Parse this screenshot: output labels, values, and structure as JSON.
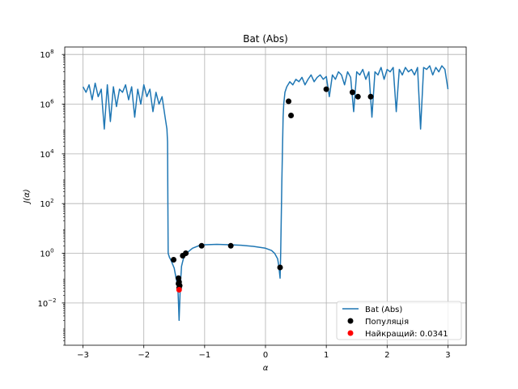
{
  "chart_data": {
    "type": "line",
    "title": "Bat (Abs)",
    "xlabel": "α",
    "ylabel": "J(α)",
    "xlim": [
      -3.3,
      3.3
    ],
    "ylim_log10": [
      -3.7,
      8.3
    ],
    "yscale": "log",
    "grid": true,
    "legend_position": "lower-right",
    "x_ticks": [
      -3,
      -2,
      -1,
      0,
      1,
      2,
      3
    ],
    "x_tick_labels": [
      "−3",
      "−2",
      "−1",
      "0",
      "1",
      "2",
      "3"
    ],
    "y_tick_exponents": [
      -2,
      0,
      2,
      4,
      6,
      8
    ],
    "y_tick_base": "10",
    "series": [
      {
        "name": "Bat (Abs)",
        "kind": "line",
        "color": "#1f77b4",
        "x": [
          -3.0,
          -2.95,
          -2.9,
          -2.85,
          -2.8,
          -2.75,
          -2.7,
          -2.65,
          -2.6,
          -2.55,
          -2.5,
          -2.45,
          -2.4,
          -2.35,
          -2.3,
          -2.25,
          -2.2,
          -2.15,
          -2.1,
          -2.05,
          -2.0,
          -1.95,
          -1.9,
          -1.85,
          -1.8,
          -1.75,
          -1.7,
          -1.65,
          -1.62,
          -1.61,
          -1.6,
          -1.58,
          -1.55,
          -1.5,
          -1.47,
          -1.45,
          -1.44,
          -1.43,
          -1.42,
          -1.41,
          -1.4,
          -1.38,
          -1.35,
          -1.3,
          -1.2,
          -1.1,
          -1.0,
          -0.8,
          -0.6,
          -0.4,
          -0.2,
          0.0,
          0.1,
          0.15,
          0.2,
          0.22,
          0.24,
          0.25,
          0.27,
          0.29,
          0.3,
          0.32,
          0.35,
          0.4,
          0.45,
          0.5,
          0.55,
          0.6,
          0.65,
          0.7,
          0.75,
          0.8,
          0.85,
          0.9,
          0.95,
          1.0,
          1.05,
          1.1,
          1.15,
          1.2,
          1.25,
          1.3,
          1.35,
          1.4,
          1.45,
          1.5,
          1.55,
          1.6,
          1.65,
          1.7,
          1.75,
          1.8,
          1.85,
          1.9,
          1.95,
          2.0,
          2.05,
          2.1,
          2.15,
          2.2,
          2.25,
          2.3,
          2.35,
          2.4,
          2.45,
          2.5,
          2.55,
          2.6,
          2.65,
          2.7,
          2.75,
          2.8,
          2.85,
          2.9,
          2.95,
          3.0
        ],
        "y": [
          5000000.0,
          3000000.0,
          6000000.0,
          1500000.0,
          7000000.0,
          2000000.0,
          4000000.0,
          100000.0,
          6000000.0,
          200000.0,
          5000000.0,
          800000.0,
          4000000.0,
          3000000.0,
          6000000.0,
          1500000.0,
          5000000.0,
          300000.0,
          4000000.0,
          1000000.0,
          6000000.0,
          2000000.0,
          4000000.0,
          500000.0,
          3000000.0,
          1000000.0,
          2000000.0,
          300000.0,
          100000.0,
          30000.0,
          1.0,
          0.7,
          0.5,
          0.25,
          0.1,
          0.06,
          0.04,
          0.01,
          0.002,
          0.01,
          0.05,
          0.3,
          0.6,
          1.0,
          1.6,
          2.0,
          2.2,
          2.3,
          2.2,
          2.1,
          1.9,
          1.6,
          1.3,
          1.0,
          0.6,
          0.3,
          0.1,
          1.0,
          1000.0,
          300000.0,
          1000000.0,
          3000000.0,
          5000000.0,
          8000000.0,
          6000000.0,
          10000000.0,
          8000000.0,
          12000000.0,
          6000000.0,
          10000000.0,
          15000000.0,
          8000000.0,
          12000000.0,
          15000000.0,
          10000000.0,
          13000000.0,
          2000000.0,
          15000000.0,
          10000000.0,
          20000000.0,
          15000000.0,
          6000000.0,
          20000000.0,
          12000000.0,
          500000.0,
          20000000.0,
          15000000.0,
          25000000.0,
          10000000.0,
          20000000.0,
          300000.0,
          20000000.0,
          15000000.0,
          30000000.0,
          10000000.0,
          25000000.0,
          20000000.0,
          30000000.0,
          500000.0,
          25000000.0,
          15000000.0,
          30000000.0,
          20000000.0,
          25000000.0,
          15000000.0,
          30000000.0,
          100000.0,
          30000000.0,
          25000000.0,
          35000000.0,
          15000000.0,
          30000000.0,
          20000000.0,
          35000000.0,
          25000000.0,
          4000000.0
        ]
      },
      {
        "name": "Популяція",
        "kind": "scatter",
        "color": "#000000",
        "x": [
          -1.51,
          -1.43,
          -1.42,
          -1.41,
          -1.42,
          -1.43,
          -1.36,
          -1.31,
          -1.05,
          -0.57,
          0.24,
          0.38,
          0.42,
          1.0,
          1.43,
          1.52,
          1.73
        ],
        "y": [
          0.55,
          0.1,
          0.07,
          0.05,
          0.04,
          0.06,
          0.8,
          1.0,
          2.0,
          2.0,
          0.27,
          1300000.0,
          350000.0,
          4000000.0,
          3000000.0,
          2000000.0,
          2000000.0
        ]
      },
      {
        "name": "Найкращий: 0.0341",
        "kind": "scatter",
        "color": "#ff0000",
        "x": [
          -1.42
        ],
        "y": [
          0.0341
        ]
      }
    ]
  }
}
